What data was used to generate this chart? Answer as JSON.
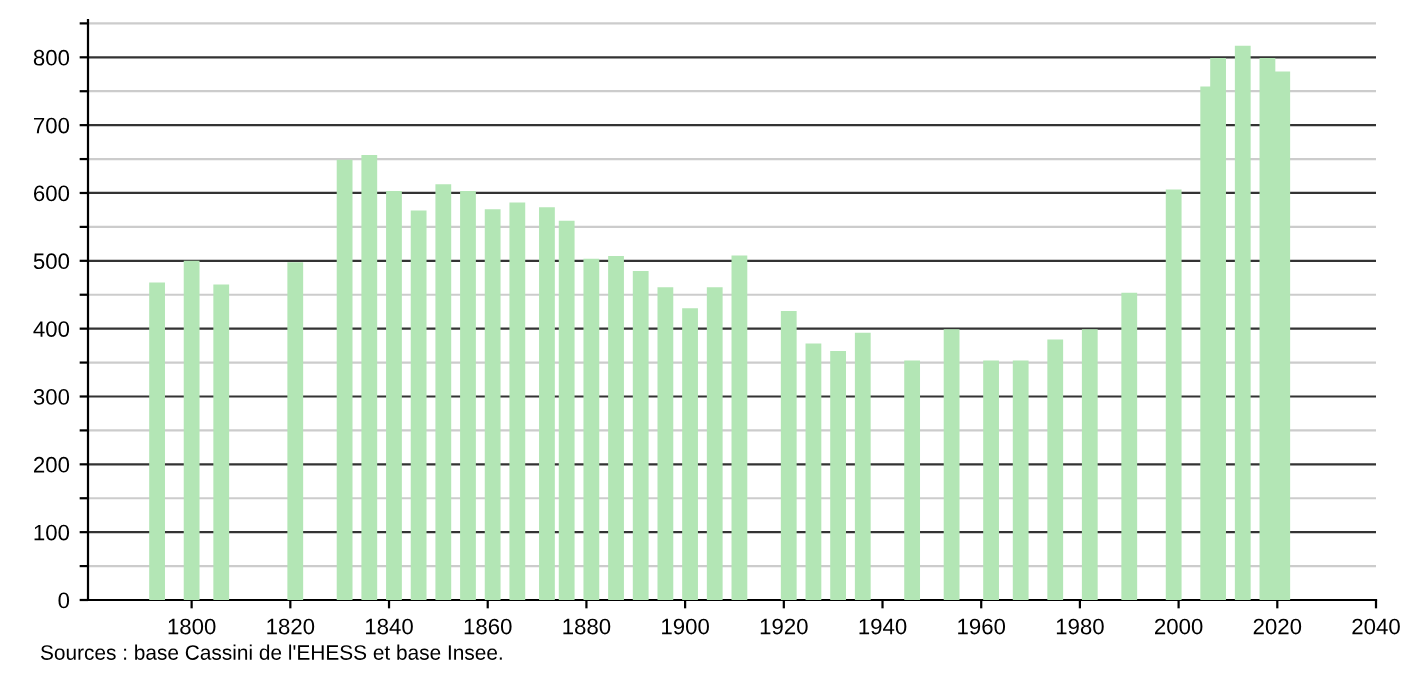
{
  "chart_data": {
    "type": "bar",
    "x": [
      1793,
      1800,
      1806,
      1821,
      1831,
      1836,
      1841,
      1846,
      1851,
      1856,
      1861,
      1866,
      1872,
      1876,
      1881,
      1886,
      1891,
      1896,
      1901,
      1906,
      1911,
      1921,
      1926,
      1931,
      1936,
      1946,
      1954,
      1962,
      1968,
      1975,
      1982,
      1990,
      1999,
      2006,
      2008,
      2013,
      2018,
      2021
    ],
    "values": [
      468,
      500,
      465,
      498,
      649,
      656,
      603,
      574,
      613,
      603,
      576,
      586,
      579,
      559,
      503,
      507,
      485,
      461,
      430,
      461,
      508,
      426,
      378,
      367,
      394,
      353,
      399,
      353,
      353,
      384,
      399,
      453,
      605,
      757,
      799,
      817,
      799,
      779
    ],
    "color": "#b3e6b5",
    "xlim": [
      1779,
      2040
    ],
    "xticks": [
      1800,
      1820,
      1840,
      1860,
      1880,
      1900,
      1920,
      1940,
      1960,
      1980,
      2000,
      2020,
      2040
    ],
    "ylim": [
      0,
      855
    ],
    "yticks": [
      0,
      {
        "value": 50,
        "label": null
      },
      100,
      {
        "value": 150,
        "label": null
      },
      200,
      {
        "value": 250,
        "label": null
      },
      300,
      {
        "value": 350,
        "label": null
      },
      400,
      {
        "value": 450,
        "label": null
      },
      500,
      {
        "value": 550,
        "label": null
      },
      600,
      {
        "value": 650,
        "label": null
      },
      700,
      {
        "value": 750,
        "label": null
      },
      800,
      {
        "value": 850,
        "label": null
      }
    ],
    "grid": "y",
    "annotations": [
      "Sources : base Cassini de l'EHESS et base Insee."
    ]
  }
}
